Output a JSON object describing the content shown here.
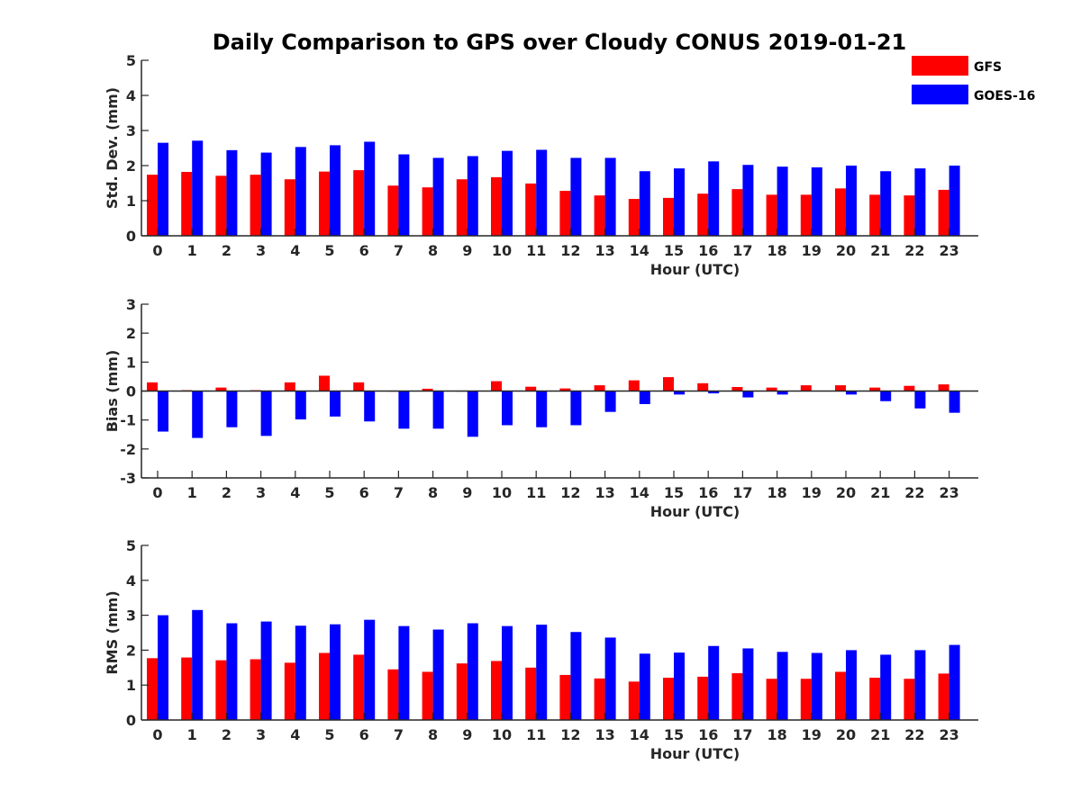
{
  "figure": {
    "title": "Daily Comparison to GPS over Cloudy CONUS 2019-01-21"
  },
  "legend": {
    "placement": "top-right",
    "items": [
      {
        "name": "GFS",
        "color": "#ff0000"
      },
      {
        "name": "GOES-16",
        "color": "#0000ff"
      }
    ]
  },
  "chart_data": [
    {
      "type": "bar",
      "title": "Daily Comparison to GPS over Cloudy CONUS 2019-01-21",
      "xlabel": "Hour (UTC)",
      "ylabel": "Std. Dev. (mm)",
      "ylim": [
        0,
        5
      ],
      "yticks": [
        0,
        1,
        2,
        3,
        4,
        5
      ],
      "grid": false,
      "categories": [
        "0",
        "1",
        "2",
        "3",
        "4",
        "5",
        "6",
        "7",
        "8",
        "9",
        "10",
        "11",
        "12",
        "13",
        "14",
        "15",
        "16",
        "17",
        "18",
        "19",
        "20",
        "21",
        "22",
        "23"
      ],
      "series": [
        {
          "name": "GFS",
          "color": "#ff0000",
          "values": [
            1.74,
            1.82,
            1.71,
            1.74,
            1.61,
            1.83,
            1.87,
            1.43,
            1.38,
            1.61,
            1.67,
            1.49,
            1.28,
            1.15,
            1.05,
            1.08,
            1.2,
            1.33,
            1.17,
            1.17,
            1.35,
            1.17,
            1.15,
            1.31
          ]
        },
        {
          "name": "GOES-16",
          "color": "#0000ff",
          "values": [
            2.65,
            2.71,
            2.44,
            2.37,
            2.53,
            2.58,
            2.68,
            2.32,
            2.22,
            2.27,
            2.42,
            2.45,
            2.22,
            2.22,
            1.84,
            1.92,
            2.12,
            2.02,
            1.97,
            1.95,
            2.0,
            1.84,
            1.92,
            2.0
          ]
        }
      ]
    },
    {
      "type": "bar",
      "xlabel": "Hour (UTC)",
      "ylabel": "Bias (mm)",
      "ylim": [
        -3,
        3
      ],
      "yticks": [
        -3,
        -2,
        -1,
        0,
        1,
        2,
        3
      ],
      "grid": false,
      "categories": [
        "0",
        "1",
        "2",
        "3",
        "4",
        "5",
        "6",
        "7",
        "8",
        "9",
        "10",
        "11",
        "12",
        "13",
        "14",
        "15",
        "16",
        "17",
        "18",
        "19",
        "20",
        "21",
        "22",
        "23"
      ],
      "series": [
        {
          "name": "GFS",
          "color": "#ff0000",
          "values": [
            0.3,
            0.03,
            0.12,
            0.03,
            0.3,
            0.53,
            0.3,
            -0.02,
            0.08,
            -0.02,
            0.34,
            0.15,
            0.09,
            0.2,
            0.37,
            0.48,
            0.27,
            0.14,
            0.12,
            0.2,
            0.2,
            0.12,
            0.18,
            0.23
          ]
        },
        {
          "name": "GOES-16",
          "color": "#0000ff",
          "values": [
            -1.4,
            -1.62,
            -1.25,
            -1.55,
            -0.98,
            -0.88,
            -1.05,
            -1.3,
            -1.3,
            -1.58,
            -1.18,
            -1.25,
            -1.18,
            -0.72,
            -0.45,
            -0.12,
            -0.08,
            -0.22,
            -0.12,
            0.0,
            -0.12,
            -0.35,
            -0.6,
            -0.75
          ]
        }
      ]
    },
    {
      "type": "bar",
      "xlabel": "Hour (UTC)",
      "ylabel": "RMS (mm)",
      "ylim": [
        0,
        5
      ],
      "yticks": [
        0,
        1,
        2,
        3,
        4,
        5
      ],
      "grid": false,
      "categories": [
        "0",
        "1",
        "2",
        "3",
        "4",
        "5",
        "6",
        "7",
        "8",
        "9",
        "10",
        "11",
        "12",
        "13",
        "14",
        "15",
        "16",
        "17",
        "18",
        "19",
        "20",
        "21",
        "22",
        "23"
      ],
      "series": [
        {
          "name": "GFS",
          "color": "#ff0000",
          "values": [
            1.77,
            1.79,
            1.71,
            1.74,
            1.64,
            1.92,
            1.87,
            1.45,
            1.38,
            1.62,
            1.69,
            1.5,
            1.29,
            1.19,
            1.1,
            1.21,
            1.24,
            1.34,
            1.18,
            1.18,
            1.38,
            1.21,
            1.18,
            1.33
          ]
        },
        {
          "name": "GOES-16",
          "color": "#0000ff",
          "values": [
            3.0,
            3.15,
            2.77,
            2.82,
            2.7,
            2.74,
            2.87,
            2.69,
            2.59,
            2.77,
            2.69,
            2.73,
            2.52,
            2.36,
            1.9,
            1.93,
            2.12,
            2.05,
            1.95,
            1.92,
            2.0,
            1.87,
            2.0,
            2.15
          ]
        }
      ]
    }
  ]
}
